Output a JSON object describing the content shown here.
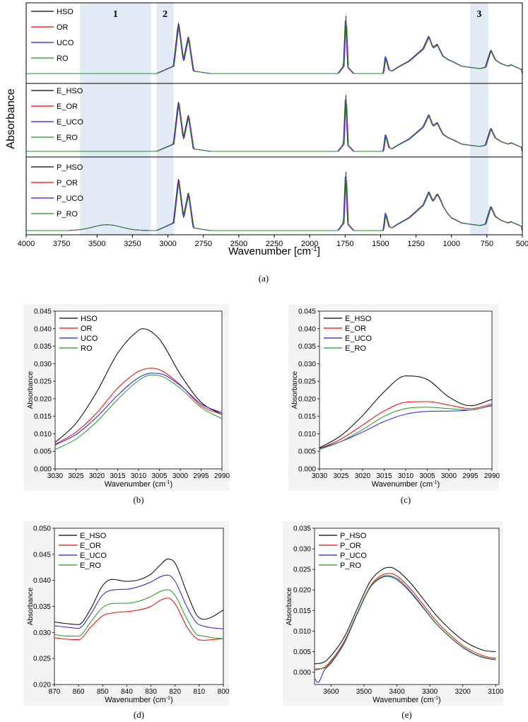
{
  "chart_data": [
    {
      "id": "a",
      "type": "line",
      "caption": "(a)",
      "xlabel": "Wavenumber [cm",
      "xlabel_sup": "-1",
      "xlabel_end": "]",
      "ylabel": "Absorbance",
      "xlim": [
        4000,
        500
      ],
      "xticks": [
        4000,
        3750,
        3500,
        3250,
        3000,
        2750,
        2500,
        2250,
        2000,
        1750,
        1500,
        1250,
        1000,
        750,
        500
      ],
      "regions": [
        {
          "label": "1",
          "x": [
            3620,
            3120
          ]
        },
        {
          "label": "2",
          "x": [
            3080,
            2960
          ]
        },
        {
          "label": "3",
          "x": [
            870,
            740
          ]
        }
      ],
      "peaks": [
        [
          4000,
          0.0
        ],
        [
          3700,
          0.0
        ],
        [
          3080,
          0.0
        ],
        [
          3010,
          0.07
        ],
        [
          2960,
          0.12
        ],
        [
          2925,
          0.82
        ],
        [
          2890,
          0.2
        ],
        [
          2855,
          0.6
        ],
        [
          2820,
          0.04
        ],
        [
          2700,
          0.0
        ],
        [
          1800,
          0.0
        ],
        [
          1760,
          0.12
        ],
        [
          1745,
          0.97
        ],
        [
          1730,
          0.1
        ],
        [
          1690,
          0.0
        ],
        [
          1480,
          0.0
        ],
        [
          1465,
          0.28
        ],
        [
          1440,
          0.06
        ],
        [
          1420,
          0.04
        ],
        [
          1380,
          0.1
        ],
        [
          1300,
          0.2
        ],
        [
          1240,
          0.32
        ],
        [
          1200,
          0.4
        ],
        [
          1160,
          0.6
        ],
        [
          1130,
          0.42
        ],
        [
          1100,
          0.47
        ],
        [
          1060,
          0.28
        ],
        [
          1020,
          0.22
        ],
        [
          980,
          0.18
        ],
        [
          930,
          0.12
        ],
        [
          870,
          0.1
        ],
        [
          800,
          0.08
        ],
        [
          760,
          0.1
        ],
        [
          722,
          0.38
        ],
        [
          690,
          0.22
        ],
        [
          650,
          0.16
        ],
        [
          600,
          0.12
        ],
        [
          580,
          0.14
        ],
        [
          500,
          0.06
        ]
      ],
      "panels": [
        {
          "series": [
            {
              "name": "HSO",
              "color": "#000000",
              "scale": 1.0,
              "dx": 0
            },
            {
              "name": "OR",
              "color": "#ff0000",
              "scale": 0.96,
              "dx": 4
            },
            {
              "name": "UCO",
              "color": "#1a1aff",
              "scale": 0.98,
              "dx": -3
            },
            {
              "name": "RO",
              "color": "#1b9e1b",
              "scale": 0.97,
              "dx": 2
            }
          ]
        },
        {
          "series": [
            {
              "name": "E_HSO",
              "color": "#000000",
              "scale": 1.0,
              "dx": 0
            },
            {
              "name": "E_OR",
              "color": "#ff0000",
              "scale": 0.97,
              "dx": 4
            },
            {
              "name": "E_UCO",
              "color": "#1a1aff",
              "scale": 0.98,
              "dx": -3
            },
            {
              "name": "E_RO",
              "color": "#1b9e1b",
              "scale": 0.96,
              "dx": 2
            }
          ]
        },
        {
          "series": [
            {
              "name": "P_HSO",
              "color": "#000000",
              "scale": 1.0,
              "dx": 0
            },
            {
              "name": "P_OR",
              "color": "#ff0000",
              "scale": 0.97,
              "dx": 4
            },
            {
              "name": "P_UCO",
              "color": "#1a1aff",
              "scale": 0.98,
              "dx": -3
            },
            {
              "name": "P_RO",
              "color": "#1b9e1b",
              "scale": 0.96,
              "dx": 2
            }
          ]
        }
      ]
    },
    {
      "id": "b",
      "type": "line",
      "caption": "(b)",
      "xlabel": "Wavenumber (cm",
      "xlabel_sup": "-1",
      "xlabel_end": ")",
      "ylabel": "Absorbance",
      "xlim": [
        3030,
        2990
      ],
      "ylim": [
        0.0,
        0.045
      ],
      "xticks": [
        3030,
        3025,
        3020,
        3015,
        3010,
        3005,
        3000,
        2995,
        2990
      ],
      "yticks": [
        "0.000",
        "0.005",
        "0.010",
        "0.015",
        "0.020",
        "0.025",
        "0.030",
        "0.035",
        "0.040",
        "0.045"
      ],
      "series": [
        {
          "name": "HSO",
          "color": "#000000",
          "x": [
            3030,
            3025,
            3020,
            3015,
            3010,
            3009,
            3005,
            3000,
            2995,
            2990
          ],
          "y": [
            0.0075,
            0.013,
            0.022,
            0.033,
            0.0395,
            0.04,
            0.037,
            0.027,
            0.019,
            0.0155
          ]
        },
        {
          "name": "OR",
          "color": "#ff0000",
          "x": [
            3030,
            3025,
            3020,
            3015,
            3010,
            3007,
            3005,
            3000,
            2995,
            2990
          ],
          "y": [
            0.007,
            0.0105,
            0.016,
            0.023,
            0.0278,
            0.0287,
            0.0283,
            0.024,
            0.018,
            0.0155
          ]
        },
        {
          "name": "UCO",
          "color": "#1a1aff",
          "x": [
            3030,
            3025,
            3020,
            3015,
            3010,
            3007,
            3005,
            3000,
            2995,
            2990
          ],
          "y": [
            0.0068,
            0.0098,
            0.0148,
            0.021,
            0.026,
            0.0273,
            0.0272,
            0.0238,
            0.0185,
            0.016
          ]
        },
        {
          "name": "RO",
          "color": "#1b9e1b",
          "x": [
            3030,
            3025,
            3020,
            3015,
            3010,
            3007,
            3005,
            3000,
            2995,
            2990
          ],
          "y": [
            0.0055,
            0.0085,
            0.0135,
            0.0198,
            0.0252,
            0.0268,
            0.0266,
            0.023,
            0.0175,
            0.0143
          ]
        }
      ]
    },
    {
      "id": "c",
      "type": "line",
      "caption": "(c)",
      "xlabel": "Wavenumber (cm",
      "xlabel_sup": "-1",
      "xlabel_end": ")",
      "ylabel": "Absorbance",
      "xlim": [
        3030,
        2990
      ],
      "ylim": [
        0.0,
        0.045
      ],
      "xticks": [
        3030,
        3025,
        3020,
        3015,
        3010,
        3005,
        3000,
        2995,
        2990
      ],
      "yticks": [
        "0.000",
        "0.005",
        "0.010",
        "0.015",
        "0.020",
        "0.025",
        "0.030",
        "0.035",
        "0.040",
        "0.045"
      ],
      "series": [
        {
          "name": "E_HSO",
          "color": "#000000",
          "x": [
            3030,
            3025,
            3020,
            3015,
            3010,
            3005,
            3000,
            2995,
            2990
          ],
          "y": [
            0.006,
            0.0095,
            0.0152,
            0.022,
            0.0265,
            0.0255,
            0.0205,
            0.018,
            0.0198
          ]
        },
        {
          "name": "E_OR",
          "color": "#ff0000",
          "x": [
            3030,
            3025,
            3020,
            3015,
            3010,
            3005,
            3000,
            2995,
            2990
          ],
          "y": [
            0.0058,
            0.0085,
            0.0125,
            0.0165,
            0.019,
            0.0192,
            0.0182,
            0.0172,
            0.0185
          ]
        },
        {
          "name": "E_UCO",
          "color": "#1a1aff",
          "x": [
            3030,
            3025,
            3020,
            3015,
            3010,
            3005,
            3000,
            2995,
            2990
          ],
          "y": [
            0.0058,
            0.0078,
            0.0105,
            0.0135,
            0.0156,
            0.0164,
            0.0165,
            0.0168,
            0.018
          ]
        },
        {
          "name": "E_RO",
          "color": "#1b9e1b",
          "x": [
            3030,
            3025,
            3020,
            3015,
            3010,
            3005,
            3000,
            2995,
            2990
          ],
          "y": [
            0.0055,
            0.0078,
            0.0112,
            0.015,
            0.0172,
            0.0176,
            0.0172,
            0.0168,
            0.0182
          ]
        }
      ]
    },
    {
      "id": "d",
      "type": "line",
      "caption": "(d)",
      "xlabel": "Wavenumber (cm",
      "xlabel_sup": "-1",
      "xlabel_end": ")",
      "ylabel": "Absorbance",
      "xlim": [
        870,
        800
      ],
      "ylim": [
        0.02,
        0.05
      ],
      "xticks": [
        870,
        860,
        850,
        840,
        830,
        820,
        810,
        800
      ],
      "yticks": [
        "0.020",
        "0.025",
        "0.030",
        "0.035",
        "0.040",
        "0.045",
        "0.050"
      ],
      "series": [
        {
          "name": "E_HSO",
          "color": "#000000",
          "x": [
            870,
            865,
            860,
            855,
            850,
            846,
            840,
            835,
            830,
            826,
            823,
            820,
            815,
            811,
            808,
            805,
            800
          ],
          "y": [
            0.032,
            0.0317,
            0.0315,
            0.0345,
            0.039,
            0.0402,
            0.0398,
            0.0401,
            0.0412,
            0.043,
            0.0441,
            0.0433,
            0.0375,
            0.0333,
            0.0325,
            0.0329,
            0.0343
          ]
        },
        {
          "name": "E_OR",
          "color": "#ff0000",
          "x": [
            870,
            865,
            860,
            855,
            850,
            845,
            840,
            835,
            830,
            826,
            823,
            820,
            815,
            811,
            808,
            805,
            800
          ],
          "y": [
            0.029,
            0.0287,
            0.0286,
            0.031,
            0.0332,
            0.0338,
            0.034,
            0.0343,
            0.035,
            0.0362,
            0.0366,
            0.0355,
            0.031,
            0.0288,
            0.0285,
            0.0286,
            0.0288
          ]
        },
        {
          "name": "E_UCO",
          "color": "#1a1aff",
          "x": [
            870,
            865,
            860,
            855,
            850,
            845,
            840,
            835,
            830,
            826,
            823,
            820,
            815,
            811,
            808,
            805,
            800
          ],
          "y": [
            0.0313,
            0.031,
            0.0308,
            0.0335,
            0.0372,
            0.0382,
            0.0383,
            0.0388,
            0.0397,
            0.0407,
            0.041,
            0.0398,
            0.0348,
            0.0318,
            0.0312,
            0.0309,
            0.0307
          ]
        },
        {
          "name": "E_RO",
          "color": "#1b9e1b",
          "x": [
            870,
            865,
            860,
            855,
            850,
            845,
            840,
            835,
            830,
            826,
            823,
            820,
            815,
            811,
            808,
            805,
            800
          ],
          "y": [
            0.0296,
            0.0293,
            0.0293,
            0.032,
            0.0348,
            0.0356,
            0.0356,
            0.036,
            0.0369,
            0.0379,
            0.0382,
            0.0371,
            0.0325,
            0.0296,
            0.0293,
            0.029,
            0.0288
          ]
        }
      ]
    },
    {
      "id": "e",
      "type": "line",
      "caption": "(e)",
      "xlabel": "Wavenumber (cm",
      "xlabel_sup": "-1",
      "xlabel_end": ")",
      "ylabel": "Absorbance",
      "xlim": [
        3650,
        3090
      ],
      "ylim": [
        -0.003,
        0.035
      ],
      "xticks": [
        3600,
        3500,
        3400,
        3300,
        3200,
        3100
      ],
      "yticks": [
        "0.000",
        "0.005",
        "0.010",
        "0.015",
        "0.020",
        "0.025",
        "0.030",
        "0.035"
      ],
      "ytick_values": [
        0.0,
        0.005,
        0.01,
        0.015,
        0.02,
        0.025,
        0.03,
        0.035
      ],
      "series": [
        {
          "name": "P_HSO",
          "color": "#000000",
          "x": [
            3650,
            3620,
            3600,
            3560,
            3520,
            3480,
            3440,
            3420,
            3400,
            3360,
            3320,
            3280,
            3240,
            3200,
            3160,
            3130,
            3100
          ],
          "y": [
            0.002,
            0.0025,
            0.004,
            0.0085,
            0.0155,
            0.0222,
            0.0252,
            0.0255,
            0.0248,
            0.0218,
            0.0178,
            0.0138,
            0.0105,
            0.0078,
            0.006,
            0.0052,
            0.005
          ]
        },
        {
          "name": "P_OR",
          "color": "#ff0000",
          "x": [
            3650,
            3620,
            3600,
            3560,
            3520,
            3480,
            3440,
            3420,
            3400,
            3360,
            3320,
            3280,
            3240,
            3200,
            3160,
            3130,
            3100
          ],
          "y": [
            0.0005,
            0.0012,
            0.0028,
            0.0075,
            0.0145,
            0.021,
            0.0238,
            0.024,
            0.0234,
            0.0204,
            0.0164,
            0.0124,
            0.0092,
            0.0065,
            0.0047,
            0.0038,
            0.0034
          ]
        },
        {
          "name": "P_UCO",
          "color": "#1a1aff",
          "x": [
            3650,
            3640,
            3620,
            3600,
            3560,
            3520,
            3480,
            3440,
            3430,
            3400,
            3360,
            3320,
            3280,
            3240,
            3200,
            3160,
            3130,
            3100
          ],
          "y": [
            -0.0015,
            -0.0025,
            0.0005,
            0.0022,
            0.007,
            0.0142,
            0.0207,
            0.0232,
            0.0233,
            0.0225,
            0.0195,
            0.0156,
            0.0117,
            0.0086,
            0.006,
            0.0042,
            0.0034,
            0.003
          ]
        },
        {
          "name": "P_RO",
          "color": "#1b9e1b",
          "x": [
            3650,
            3620,
            3600,
            3560,
            3520,
            3480,
            3440,
            3430,
            3400,
            3360,
            3320,
            3280,
            3240,
            3200,
            3160,
            3130,
            3100
          ],
          "y": [
            0.0008,
            0.001,
            0.0025,
            0.0072,
            0.0144,
            0.0208,
            0.0234,
            0.0235,
            0.0228,
            0.0198,
            0.0158,
            0.0118,
            0.0087,
            0.0061,
            0.0043,
            0.0035,
            0.0031
          ]
        }
      ]
    }
  ]
}
